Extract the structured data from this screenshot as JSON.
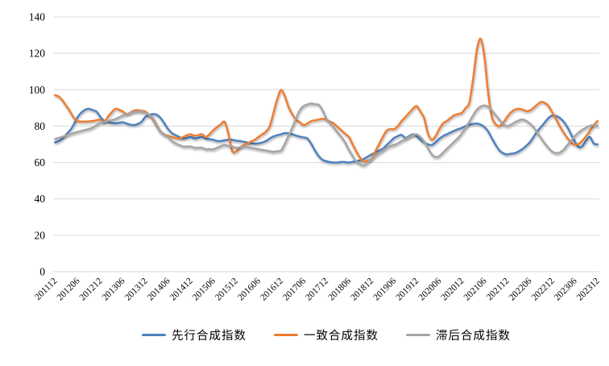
{
  "chart_data": {
    "type": "line",
    "title": "",
    "xlabel": "",
    "ylabel": "",
    "x_start": "201112",
    "x_end": "202312",
    "x_frequency": "monthly",
    "x_tick_labels": [
      "201112",
      "201206",
      "201212",
      "201306",
      "201312",
      "201406",
      "201412",
      "201506",
      "201512",
      "201606",
      "201612",
      "201706",
      "201712",
      "201806",
      "201812",
      "201906",
      "201912",
      "202006",
      "202012",
      "202106",
      "202112",
      "202206",
      "202212",
      "202306",
      "202312"
    ],
    "y_tick_labels": [
      "0",
      "20",
      "40",
      "60",
      "80",
      "100",
      "120",
      "140"
    ],
    "y_ticks": [
      0,
      20,
      40,
      60,
      80,
      100,
      120,
      140
    ],
    "ylim": [
      0,
      140
    ],
    "grid": "horizontal",
    "gridline_color": "#d9d9d9",
    "legend_position": "bottom",
    "smoothed_lines": true,
    "series": [
      {
        "name": "先行合成指数",
        "color": "#4F81BD",
        "values": [
          71.0,
          71.8,
          73.2,
          75.5,
          77.7,
          81.0,
          85.0,
          87.5,
          89.0,
          89.5,
          88.8,
          88.0,
          85.1,
          83.0,
          82.3,
          81.8,
          81.5,
          81.8,
          82.1,
          81.4,
          80.8,
          80.6,
          81.2,
          82.5,
          85.1,
          86.0,
          86.6,
          86.2,
          84.5,
          81.5,
          78.4,
          76.2,
          75.0,
          74.0,
          73.2,
          73.5,
          74.0,
          73.2,
          73.6,
          74.0,
          73.2,
          72.8,
          72.5,
          71.8,
          71.8,
          72.2,
          72.5,
          72.5,
          72.0,
          71.8,
          71.4,
          71.0,
          70.6,
          70.3,
          70.5,
          71.0,
          71.8,
          73.2,
          74.3,
          75.0,
          75.5,
          76.2,
          76.0,
          75.5,
          74.8,
          74.2,
          73.8,
          73.2,
          70.3,
          66.6,
          63.5,
          61.5,
          60.7,
          60.2,
          60.0,
          60.0,
          60.3,
          60.2,
          60.0,
          60.3,
          60.7,
          61.2,
          62.0,
          63.2,
          64.4,
          65.5,
          66.5,
          67.5,
          69.5,
          71.5,
          73.5,
          74.5,
          75.2,
          73.5,
          74.5,
          75.5,
          74.5,
          72.5,
          71.0,
          70.0,
          69.6,
          71.0,
          73.0,
          74.5,
          75.5,
          76.5,
          77.5,
          78.3,
          79.0,
          80.0,
          80.8,
          81.2,
          81.4,
          80.8,
          79.5,
          77.0,
          73.2,
          69.6,
          66.6,
          65.1,
          64.4,
          64.8,
          65.1,
          66.0,
          67.3,
          69.0,
          71.0,
          74.0,
          77.0,
          79.5,
          82.0,
          84.5,
          85.8,
          85.6,
          84.5,
          82.5,
          79.5,
          75.5,
          71.5,
          68.5,
          69.0,
          72.0,
          74.0,
          70.5,
          70.0
        ]
      },
      {
        "name": "一致合成指数",
        "color": "#ED7D31",
        "values": [
          97.0,
          96.2,
          94.0,
          91.0,
          88.0,
          84.5,
          82.8,
          82.5,
          82.5,
          82.6,
          82.8,
          83.2,
          83.5,
          82.1,
          85.0,
          87.5,
          89.5,
          89.0,
          88.0,
          86.6,
          87.5,
          88.5,
          88.8,
          88.4,
          88.0,
          86.0,
          83.6,
          80.0,
          77.0,
          75.5,
          74.7,
          74.0,
          73.5,
          73.2,
          74.0,
          75.0,
          75.5,
          74.7,
          75.0,
          75.5,
          74.0,
          75.5,
          77.7,
          79.5,
          81.0,
          82.3,
          76.0,
          66.5,
          66.0,
          68.0,
          69.5,
          70.3,
          71.5,
          72.5,
          74.0,
          75.5,
          77.0,
          80.0,
          87.3,
          95.0,
          99.8,
          96.5,
          90.5,
          86.5,
          83.5,
          82.1,
          80.6,
          81.5,
          82.8,
          83.2,
          83.6,
          84.0,
          83.6,
          82.5,
          81.4,
          79.5,
          77.7,
          75.8,
          74.0,
          70.0,
          66.0,
          62.5,
          60.7,
          61.0,
          62.0,
          66.0,
          70.0,
          74.0,
          77.5,
          78.4,
          78.4,
          80.0,
          82.8,
          85.0,
          87.3,
          89.5,
          91.0,
          88.0,
          84.3,
          76.0,
          72.5,
          74.5,
          78.4,
          81.5,
          82.8,
          84.5,
          86.0,
          86.6,
          87.3,
          90.0,
          93.0,
          106.0,
          122.0,
          128.0,
          118.0,
          98.0,
          85.0,
          81.0,
          80.0,
          82.0,
          85.0,
          87.5,
          89.0,
          89.5,
          89.2,
          88.3,
          88.5,
          90.0,
          91.8,
          93.2,
          92.8,
          91.0,
          87.5,
          84.0,
          80.0,
          76.5,
          73.5,
          71.0,
          69.8,
          70.2,
          72.0,
          74.5,
          77.5,
          80.5,
          82.8
        ]
      },
      {
        "name": "滞后合成指数",
        "color": "#A5A5A5",
        "values": [
          72.8,
          73.5,
          74.2,
          74.9,
          75.5,
          76.2,
          76.8,
          77.3,
          77.9,
          78.4,
          79.2,
          80.5,
          81.8,
          82.4,
          82.8,
          83.3,
          83.8,
          84.8,
          85.8,
          86.6,
          87.3,
          87.8,
          88.0,
          88.0,
          87.3,
          86.0,
          84.3,
          80.6,
          77.0,
          75.3,
          74.0,
          71.8,
          70.5,
          69.6,
          68.8,
          68.8,
          68.8,
          68.1,
          68.1,
          68.1,
          67.3,
          67.3,
          67.3,
          68.1,
          69.0,
          69.6,
          69.2,
          68.8,
          68.1,
          68.4,
          68.8,
          68.5,
          68.1,
          67.7,
          67.3,
          66.9,
          66.6,
          66.2,
          65.9,
          66.2,
          66.6,
          70.3,
          74.7,
          79.2,
          84.3,
          88.8,
          91.0,
          91.9,
          92.4,
          92.0,
          91.7,
          88.8,
          84.3,
          81.5,
          79.2,
          76.5,
          74.0,
          71.0,
          67.0,
          63.5,
          60.5,
          59.0,
          58.5,
          60.0,
          62.0,
          63.5,
          65.0,
          66.5,
          68.0,
          69.0,
          69.6,
          70.5,
          71.8,
          72.8,
          74.0,
          75.0,
          75.5,
          74.0,
          71.5,
          68.0,
          64.5,
          63.0,
          63.5,
          65.5,
          67.5,
          69.5,
          71.5,
          73.5,
          76.0,
          79.0,
          82.5,
          86.0,
          89.0,
          90.8,
          91.3,
          90.5,
          88.5,
          86.0,
          83.5,
          81.0,
          80.0,
          80.8,
          82.0,
          83.0,
          83.6,
          83.0,
          81.5,
          79.5,
          76.5,
          73.5,
          70.5,
          68.0,
          66.0,
          65.1,
          65.5,
          67.0,
          69.5,
          72.0,
          74.5,
          76.5,
          78.0,
          79.2,
          80.2,
          80.6,
          80.0
        ]
      }
    ]
  },
  "legend": {
    "items": [
      {
        "label": "先行合成指数"
      },
      {
        "label": "一致合成指数"
      },
      {
        "label": "滞后合成指数"
      }
    ]
  }
}
